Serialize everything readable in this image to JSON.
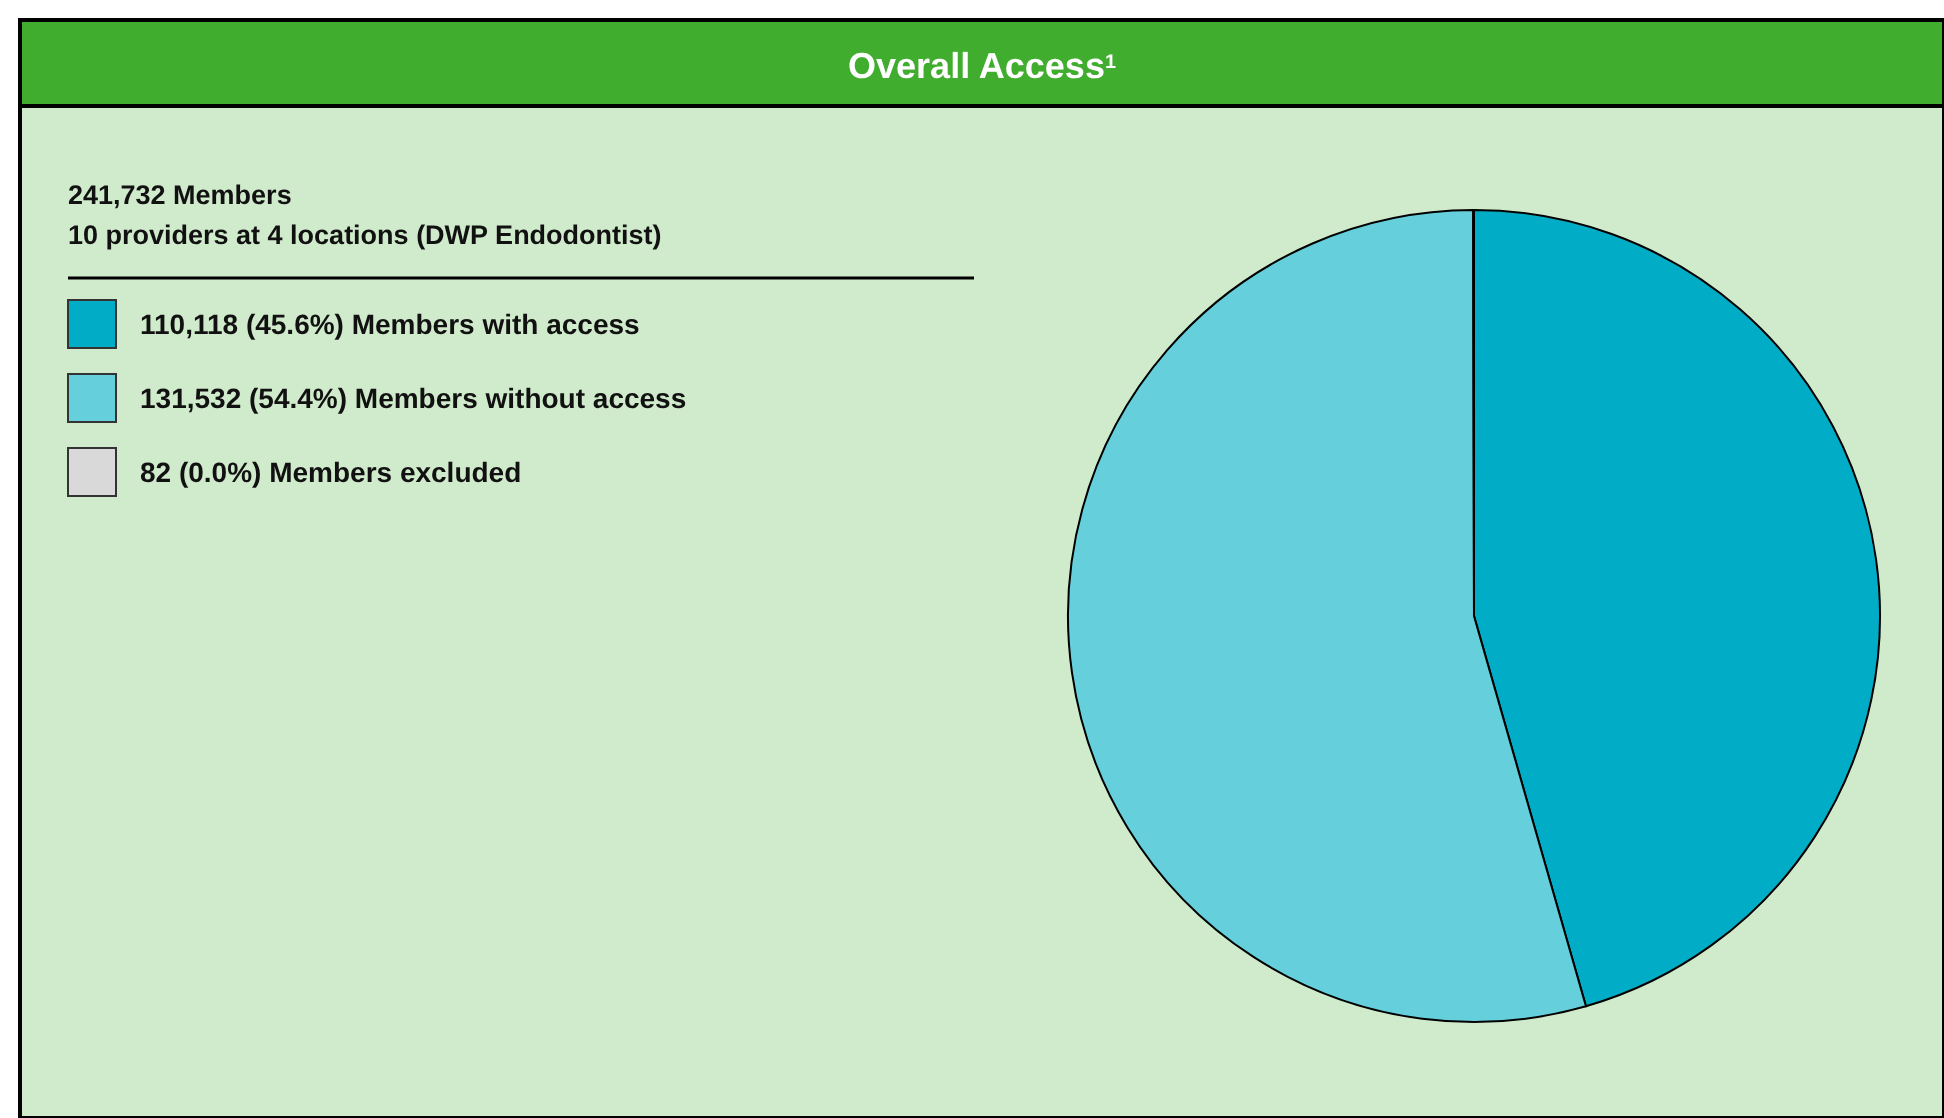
{
  "chart_data": {
    "type": "pie",
    "title": "Overall Access$^{1}$",
    "subtitle": "241,732 Members",
    "annotations": [
      "10 providers at 4 locations (DWP Endodontist)"
    ],
    "categories": [
      "110,118 (45.6%) Members with access",
      "131,532 (54.4%) Members without access",
      "82 (0.0%) Members excluded"
    ],
    "values": [
      110118,
      131532,
      82
    ],
    "colors": [
      "#00acc6",
      "#66cfdc",
      "#d9d9d9"
    ],
    "legend": "top left"
  }
}
